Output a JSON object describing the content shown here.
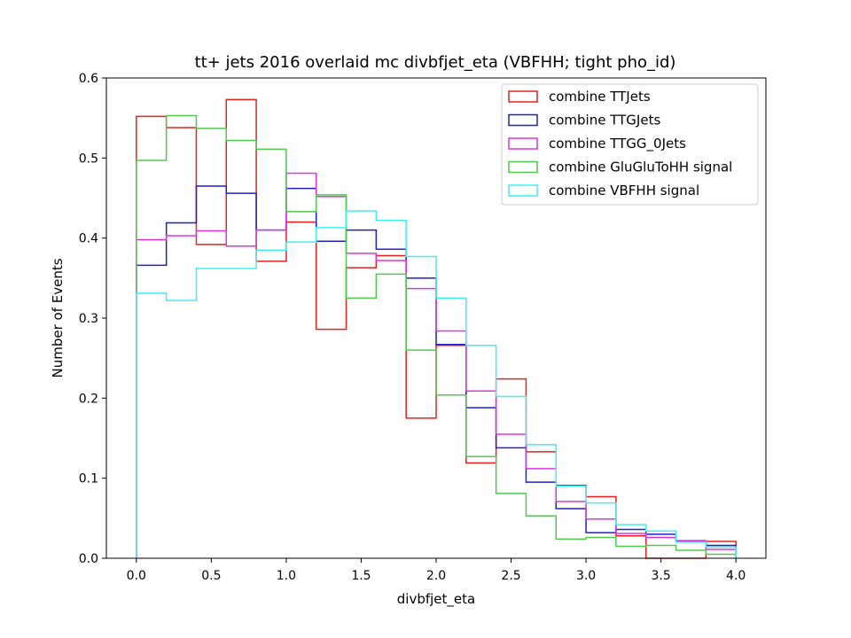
{
  "chart_data": {
    "type": "step-histogram",
    "title": "tt+ jets 2016 overlaid mc divbfjet_eta (VBFHH; tight pho_id)",
    "xlabel": "divbfjet_eta",
    "ylabel": "Number of Events",
    "xlim": [
      -0.2,
      4.2
    ],
    "ylim": [
      0.0,
      0.6
    ],
    "xticks": [
      0.0,
      0.5,
      1.0,
      1.5,
      2.0,
      2.5,
      3.0,
      3.5,
      4.0
    ],
    "xtick_labels": [
      "0.0",
      "0.5",
      "1.0",
      "1.5",
      "2.0",
      "2.5",
      "3.0",
      "3.5",
      "4.0"
    ],
    "yticks": [
      0.0,
      0.1,
      0.2,
      0.3,
      0.4,
      0.5,
      0.6
    ],
    "ytick_labels": [
      "0.0",
      "0.1",
      "0.2",
      "0.3",
      "0.4",
      "0.5",
      "0.6"
    ],
    "grid": false,
    "legend_position": "top-right",
    "bin_edges": [
      0.0,
      0.2,
      0.4,
      0.6,
      0.8,
      1.0,
      1.2,
      1.4,
      1.6,
      1.8,
      2.0,
      2.2,
      2.4,
      2.6,
      2.8,
      3.0,
      3.2,
      3.4,
      3.6,
      3.8,
      4.0
    ],
    "series": [
      {
        "name": "combine TTJets",
        "color": "#e8211f",
        "values": [
          0.552,
          0.538,
          0.392,
          0.573,
          0.371,
          0.42,
          0.286,
          0.363,
          0.378,
          0.175,
          0.266,
          0.119,
          0.224,
          0.133,
          0.091,
          0.077,
          0.028,
          0.0,
          0.0,
          0.021
        ]
      },
      {
        "name": "combine TTGJets",
        "color": "#1f1fd0",
        "values": [
          0.366,
          0.419,
          0.465,
          0.456,
          0.41,
          0.462,
          0.396,
          0.41,
          0.386,
          0.35,
          0.267,
          0.188,
          0.138,
          0.095,
          0.062,
          0.032,
          0.036,
          0.03,
          0.021,
          0.016
        ]
      },
      {
        "name": "combine TTGG_0Jets",
        "color": "#e033e0",
        "values": [
          0.398,
          0.403,
          0.409,
          0.39,
          0.41,
          0.481,
          0.452,
          0.381,
          0.372,
          0.337,
          0.284,
          0.209,
          0.155,
          0.112,
          0.071,
          0.049,
          0.031,
          0.026,
          0.022,
          0.011
        ]
      },
      {
        "name": "combine GluGluToHH signal",
        "color": "#4ec94e",
        "values": [
          0.497,
          0.553,
          0.537,
          0.522,
          0.511,
          0.433,
          0.454,
          0.325,
          0.355,
          0.26,
          0.204,
          0.127,
          0.081,
          0.053,
          0.024,
          0.026,
          0.015,
          0.016,
          0.01,
          0.005
        ]
      },
      {
        "name": "combine VBFHH signal",
        "color": "#3ff0f0",
        "values": [
          0.331,
          0.322,
          0.362,
          0.362,
          0.385,
          0.395,
          0.413,
          0.434,
          0.422,
          0.377,
          0.325,
          0.266,
          0.202,
          0.142,
          0.09,
          0.069,
          0.042,
          0.034,
          0.02,
          0.014
        ]
      }
    ]
  }
}
